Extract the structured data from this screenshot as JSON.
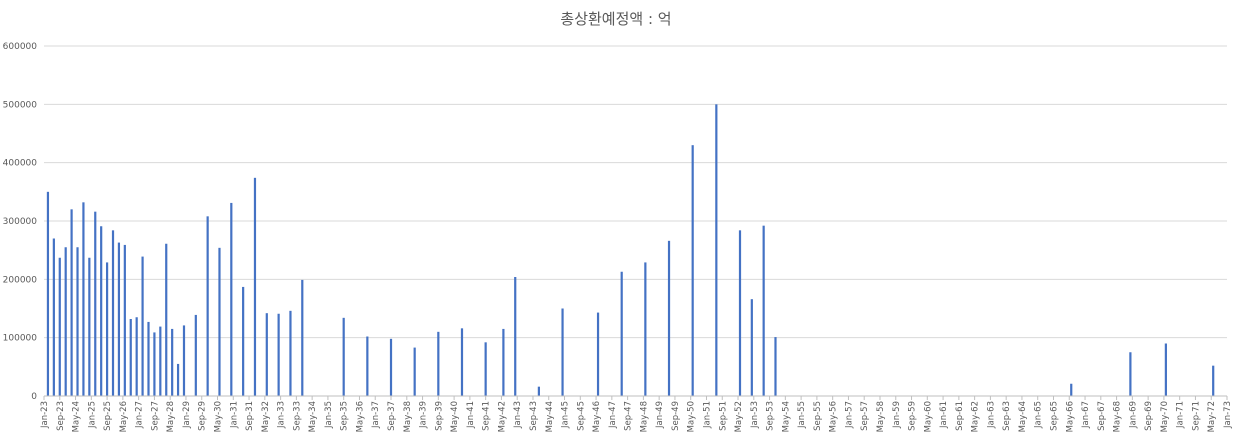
{
  "chart_data": {
    "type": "bar",
    "title": "총상환예정액 : 억",
    "xlabel": "",
    "ylabel": "",
    "ylim": [
      0,
      600000
    ],
    "yticks": [
      0,
      100000,
      200000,
      300000,
      400000,
      500000,
      600000
    ],
    "grid": true,
    "legend": "none",
    "color": "#4472c4",
    "xticks": [
      "Jan-23",
      "Sep-23",
      "May-24",
      "Jan-25",
      "Sep-25",
      "May-26",
      "Jan-27",
      "Sep-27",
      "May-28",
      "Jan-29",
      "Sep-29",
      "May-30",
      "Jan-31",
      "Sep-31",
      "May-32",
      "Jan-33",
      "Sep-33",
      "May-34",
      "Jan-35",
      "Sep-35",
      "May-36",
      "Jan-37",
      "Sep-37",
      "May-38",
      "Jan-39",
      "Sep-39",
      "May-40",
      "Jan-41",
      "Sep-41",
      "May-42",
      "Jan-43",
      "Sep-43",
      "May-44",
      "Jan-45",
      "Sep-45",
      "May-46",
      "Jan-47",
      "Sep-47",
      "May-48",
      "Jan-49",
      "Sep-49",
      "May-50",
      "Jan-51",
      "Sep-51",
      "May-52",
      "Jan-53",
      "Sep-53",
      "May-54",
      "Jan-55",
      "Sep-55",
      "May-56",
      "Jan-57",
      "Sep-57",
      "May-58",
      "Jan-59",
      "Sep-59",
      "May-60",
      "Jan-61",
      "Sep-61",
      "May-62",
      "Jan-63",
      "Sep-63",
      "May-64",
      "Jan-65",
      "Sep-65",
      "May-66",
      "Jan-67",
      "Sep-67",
      "May-68",
      "Jan-69",
      "Sep-69",
      "May-70",
      "Jan-71",
      "Sep-71",
      "May-72",
      "Jan-73"
    ],
    "bars": [
      {
        "x": "Mar-23",
        "y": 350000
      },
      {
        "x": "Jun-23",
        "y": 270000
      },
      {
        "x": "Sep-23",
        "y": 237000
      },
      {
        "x": "Dec-23",
        "y": 255000
      },
      {
        "x": "Mar-24",
        "y": 320000
      },
      {
        "x": "Jun-24",
        "y": 255000
      },
      {
        "x": "Sep-24",
        "y": 332000
      },
      {
        "x": "Dec-24",
        "y": 237000
      },
      {
        "x": "Mar-25",
        "y": 316000
      },
      {
        "x": "Jun-25",
        "y": 291000
      },
      {
        "x": "Sep-25",
        "y": 229000
      },
      {
        "x": "Dec-25",
        "y": 284000
      },
      {
        "x": "Mar-26",
        "y": 263000
      },
      {
        "x": "Jun-26",
        "y": 259000
      },
      {
        "x": "Sep-26",
        "y": 132000
      },
      {
        "x": "Dec-26",
        "y": 135000
      },
      {
        "x": "Mar-27",
        "y": 239000
      },
      {
        "x": "Jun-27",
        "y": 127000
      },
      {
        "x": "Sep-27",
        "y": 109000
      },
      {
        "x": "Dec-27",
        "y": 119000
      },
      {
        "x": "Mar-28",
        "y": 261000
      },
      {
        "x": "Jun-28",
        "y": 115000
      },
      {
        "x": "Sep-28",
        "y": 55000
      },
      {
        "x": "Dec-28",
        "y": 121000
      },
      {
        "x": "Jun-29",
        "y": 139000
      },
      {
        "x": "Dec-29",
        "y": 308000
      },
      {
        "x": "Jun-30",
        "y": 254000
      },
      {
        "x": "Dec-30",
        "y": 331000
      },
      {
        "x": "Jun-31",
        "y": 187000
      },
      {
        "x": "Dec-31",
        "y": 374000
      },
      {
        "x": "Jun-32",
        "y": 142000
      },
      {
        "x": "Dec-32",
        "y": 141000
      },
      {
        "x": "Jun-33",
        "y": 146000
      },
      {
        "x": "Dec-33",
        "y": 199000
      },
      {
        "x": "Sep-35",
        "y": 134000
      },
      {
        "x": "Sep-36",
        "y": 102000
      },
      {
        "x": "Sep-37",
        "y": 98000
      },
      {
        "x": "Sep-38",
        "y": 83000
      },
      {
        "x": "Sep-39",
        "y": 110000
      },
      {
        "x": "Sep-40",
        "y": 116000
      },
      {
        "x": "Sep-41",
        "y": 92000
      },
      {
        "x": "Jun-42",
        "y": 115000
      },
      {
        "x": "Dec-42",
        "y": 204000
      },
      {
        "x": "Dec-43",
        "y": 16000
      },
      {
        "x": "Dec-44",
        "y": 150000
      },
      {
        "x": "Jun-46",
        "y": 143000
      },
      {
        "x": "Jun-47",
        "y": 213000
      },
      {
        "x": "Jun-48",
        "y": 229000
      },
      {
        "x": "Jun-49",
        "y": 266000
      },
      {
        "x": "Jun-50",
        "y": 430000
      },
      {
        "x": "Jun-51",
        "y": 500000
      },
      {
        "x": "Jun-52",
        "y": 284000
      },
      {
        "x": "Dec-52",
        "y": 166000
      },
      {
        "x": "Jun-53",
        "y": 292000
      },
      {
        "x": "Dec-53",
        "y": 101000
      },
      {
        "x": "Jun-66",
        "y": 21000
      },
      {
        "x": "Dec-68",
        "y": 75000
      },
      {
        "x": "Jun-70",
        "y": 90000
      },
      {
        "x": "Jun-72",
        "y": 52000
      }
    ]
  }
}
